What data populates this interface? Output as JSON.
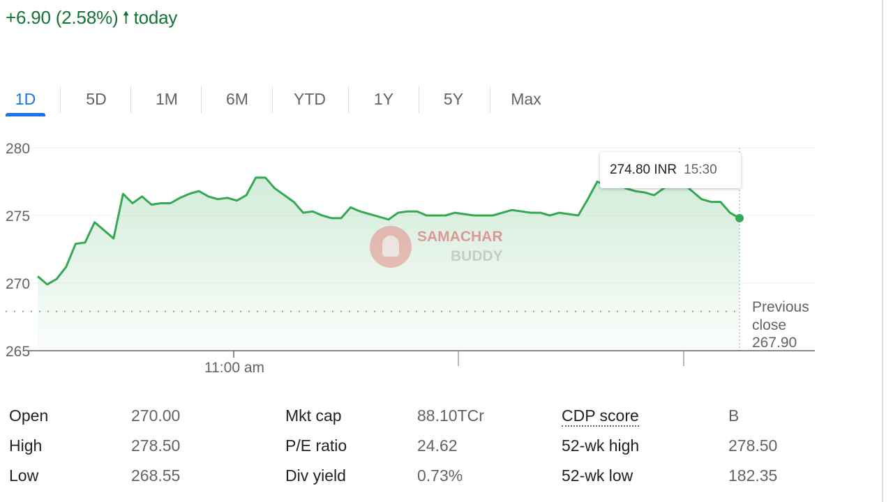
{
  "change": {
    "text": "+6.90 (2.58%)",
    "arrow": "🠕",
    "period": "today"
  },
  "colors": {
    "positive": "#137333",
    "line": "#34a853",
    "active_tab": "#1a73e8"
  },
  "tabs": [
    {
      "label": "1D",
      "active": true
    },
    {
      "label": "5D"
    },
    {
      "label": "1M"
    },
    {
      "label": "6M"
    },
    {
      "label": "YTD"
    },
    {
      "label": "1Y"
    },
    {
      "label": "5Y"
    },
    {
      "label": "Max"
    }
  ],
  "tooltip": {
    "price": "274.80 INR",
    "time": "15:30"
  },
  "previous_close": {
    "label_line1": "Previous",
    "label_line2": "close",
    "value": "267.90"
  },
  "watermark": {
    "line1": "SAMACHAR",
    "line2": "BUDDY"
  },
  "chart_data": {
    "type": "area",
    "ylim": [
      265,
      280
    ],
    "yticks": [
      "280",
      "275",
      "270",
      "265"
    ],
    "xtick_label": "11:00 am",
    "previous_close": 267.9,
    "grid": true,
    "values": [
      270.5,
      269.9,
      270.3,
      271.2,
      272.9,
      273.0,
      274.5,
      273.9,
      273.3,
      276.6,
      275.9,
      276.4,
      275.8,
      275.9,
      275.9,
      276.3,
      276.6,
      276.8,
      276.4,
      276.2,
      276.3,
      276.1,
      276.5,
      277.8,
      277.8,
      277.0,
      276.5,
      276.0,
      275.2,
      275.3,
      275.0,
      274.8,
      274.8,
      275.6,
      275.3,
      275.1,
      274.9,
      274.7,
      275.2,
      275.3,
      275.3,
      275.0,
      275.0,
      275.0,
      275.2,
      275.1,
      275.0,
      275.0,
      275.0,
      275.2,
      275.4,
      275.3,
      275.2,
      275.2,
      275.0,
      275.2,
      275.1,
      275.0,
      276.2,
      277.5,
      277.2,
      277.4,
      277.0,
      276.8,
      276.7,
      276.5,
      277.0,
      277.4,
      277.4,
      276.8,
      276.2,
      276.0,
      276.0,
      275.2,
      274.8
    ]
  },
  "stats": [
    [
      {
        "label": "Open",
        "value": "270.00"
      },
      {
        "label": "Mkt cap",
        "value": "88.10TCr"
      },
      {
        "label": "CDP score",
        "value": "B"
      }
    ],
    [
      {
        "label": "High",
        "value": "278.50"
      },
      {
        "label": "P/E ratio",
        "value": "24.62"
      },
      {
        "label": "52-wk high",
        "value": "278.50"
      }
    ],
    [
      {
        "label": "Low",
        "value": "268.55"
      },
      {
        "label": "Div yield",
        "value": "0.73%"
      },
      {
        "label": "52-wk low",
        "value": "182.35"
      }
    ]
  ]
}
